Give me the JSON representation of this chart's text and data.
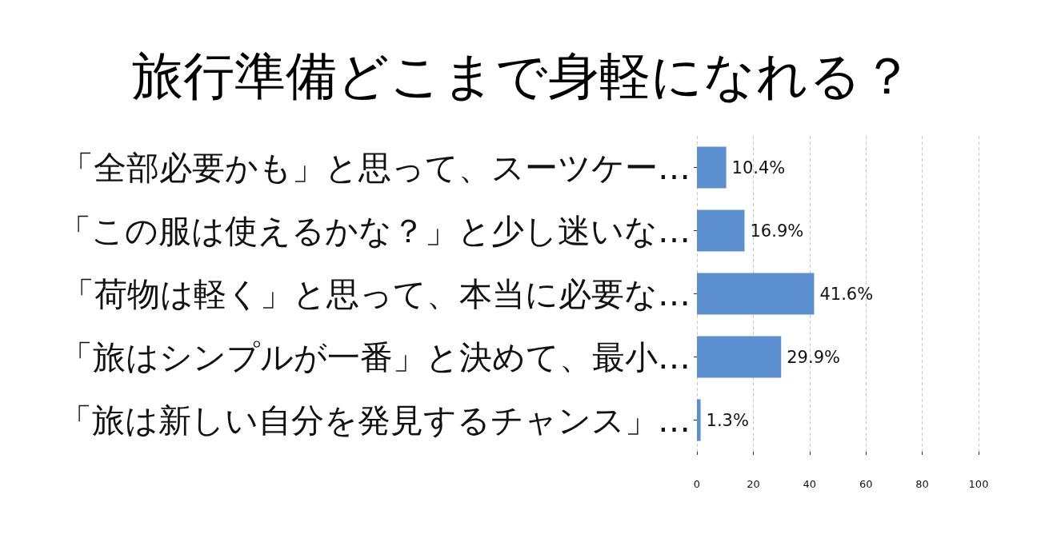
{
  "chart_data": {
    "type": "bar",
    "orientation": "horizontal",
    "title": "旅行準備どこまで身軽になれる？",
    "categories": [
      "「全部必要かも」と思って、スーツケー…",
      "「この服は使えるかな？」と少し迷いな…",
      "「荷物は軽く」と思って、本当に必要な…",
      "「旅はシンプルが一番」と決めて、最小…",
      "「旅は新しい自分を発見するチャンス」…"
    ],
    "values": [
      10.4,
      16.9,
      41.6,
      29.9,
      1.3
    ],
    "value_labels": [
      "10.4%",
      "16.9%",
      "41.6%",
      "29.9%",
      "1.3%"
    ],
    "color": "#5b8fcf",
    "xlim": [
      0,
      100
    ],
    "xticks": [
      0,
      20,
      40,
      60,
      80,
      100
    ],
    "grid": "x"
  }
}
